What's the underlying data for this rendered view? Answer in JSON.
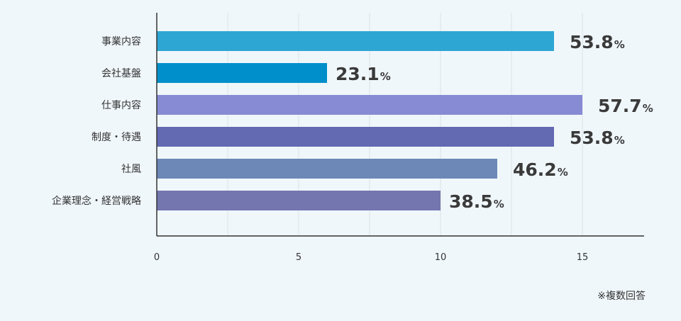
{
  "chart_data": {
    "type": "bar",
    "orientation": "horizontal",
    "categories": [
      "事業内容",
      "会社基盤",
      "仕事内容",
      "制度・待遇",
      "社風",
      "企業理念・経営戦略"
    ],
    "values": [
      14,
      6,
      15,
      14,
      12,
      10
    ],
    "data_labels": [
      "53.8",
      "23.1",
      "57.7",
      "53.8",
      "46.2",
      "38.5"
    ],
    "data_label_unit": "%",
    "colors": [
      "#2ea6d4",
      "#008fca",
      "#878bd3",
      "#636ab2",
      "#6d88b7",
      "#7476b0"
    ],
    "xlim": [
      0,
      17.2
    ],
    "xticks": [
      0,
      5,
      10,
      15
    ],
    "xtick_labels": [
      "0",
      "5",
      "10",
      "15"
    ],
    "grid": true,
    "grid_step": 2.5,
    "title": "",
    "xlabel": "",
    "ylabel": ""
  },
  "note": "※複数回答"
}
